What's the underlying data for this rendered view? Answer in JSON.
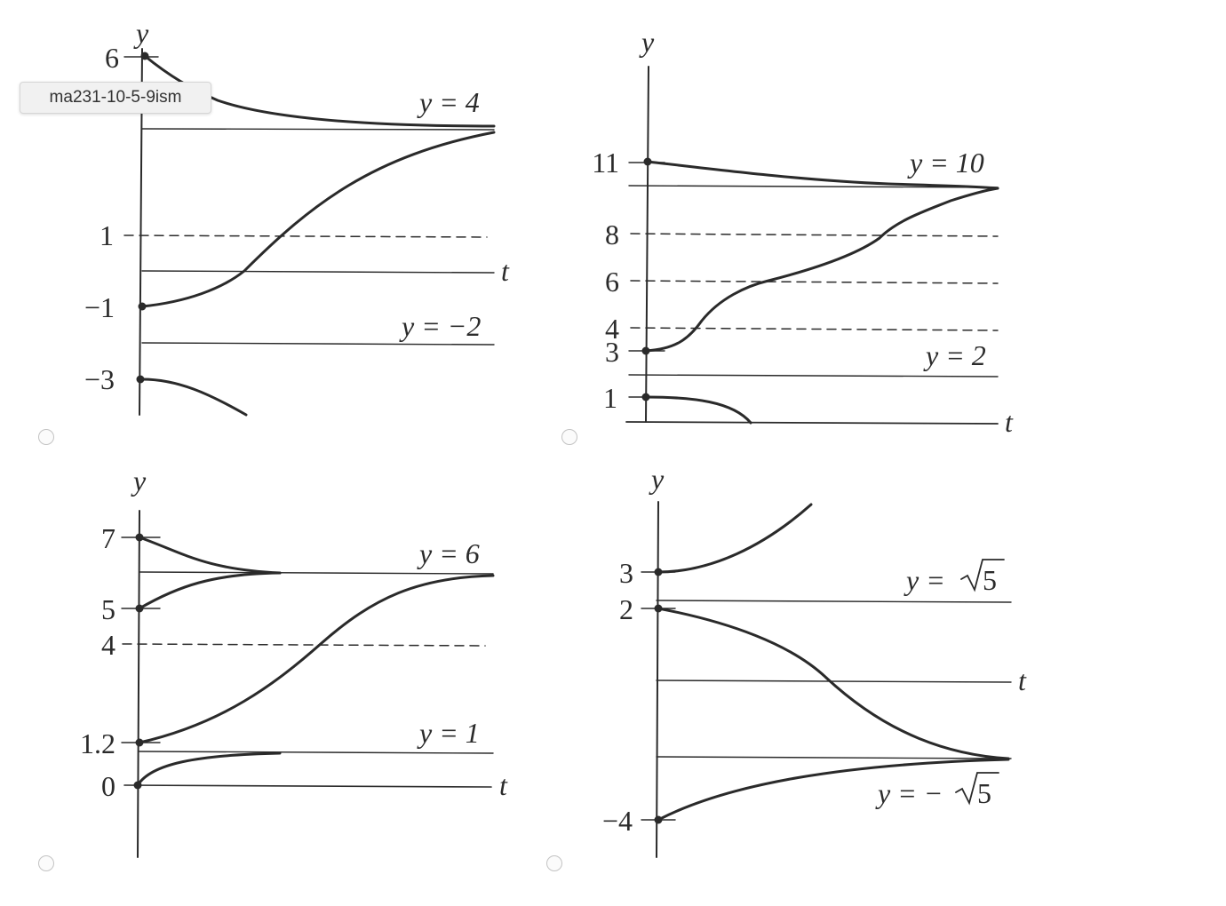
{
  "tooltip": {
    "text": "ma231-10-5-9ism"
  },
  "options": [
    {
      "id": "a",
      "labels": {
        "axis_y": "y",
        "axis_t": "t",
        "eq_top": "y = 4",
        "eq_bottom": "y = −2",
        "tick_6": "6",
        "tick_1": "1",
        "tick_m1": "−1",
        "tick_m3": "−3"
      },
      "equilibria": [
        4,
        -2
      ],
      "dashed_levels": [
        1
      ],
      "initial_values": [
        6,
        -1,
        -3
      ]
    },
    {
      "id": "b",
      "labels": {
        "axis_y": "y",
        "axis_t": "t",
        "eq_top": "y = 10",
        "eq_bottom": "y = 2",
        "tick_11": "11",
        "tick_8": "8",
        "tick_6": "6",
        "tick_4": "4",
        "tick_3": "3",
        "tick_1": "1"
      },
      "equilibria": [
        10,
        2
      ],
      "dashed_levels": [
        8,
        6,
        4
      ],
      "initial_values": [
        11,
        3,
        1
      ]
    },
    {
      "id": "c",
      "labels": {
        "axis_y": "y",
        "axis_t": "t",
        "eq_top": "y = 6",
        "eq_bottom": "y = 1",
        "tick_7": "7",
        "tick_5": "5",
        "tick_4": "4",
        "tick_1_2": "1.2",
        "tick_0": "0"
      },
      "equilibria": [
        6,
        1
      ],
      "dashed_levels": [
        4
      ],
      "initial_values": [
        7,
        5,
        1.2,
        0
      ]
    },
    {
      "id": "d",
      "labels": {
        "axis_y": "y",
        "axis_t": "t",
        "eq_top_prefix": "y = ",
        "eq_top_radicand": "5",
        "eq_bottom_prefix": "y = − ",
        "eq_bottom_radicand": "5",
        "tick_3": "3",
        "tick_2": "2",
        "tick_m4": "−4"
      },
      "equilibria_labels": [
        "√5",
        "−√5"
      ],
      "initial_values": [
        3,
        2,
        -4
      ]
    }
  ]
}
